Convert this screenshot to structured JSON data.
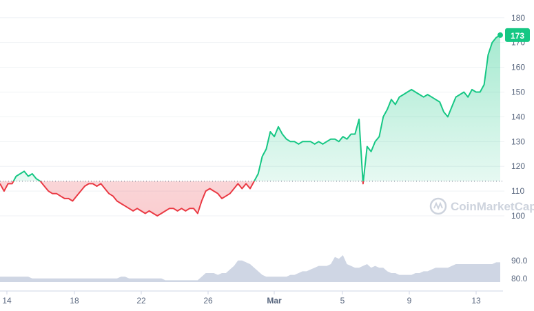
{
  "chart_data": {
    "type": "line",
    "watermark": "CoinMarketCap",
    "price_axis": {
      "ticks": [
        180,
        170,
        160,
        150,
        140,
        130,
        120,
        110,
        100
      ],
      "ylim": [
        95,
        183
      ]
    },
    "volume_axis": {
      "ticks": [
        "90.0",
        "80.0"
      ],
      "ylim": [
        78,
        93
      ]
    },
    "x_ticks": [
      "14",
      "18",
      "22",
      "26",
      "Mar",
      "5",
      "9",
      "13"
    ],
    "baseline": 114,
    "current_price_label": "173",
    "colors": {
      "up": "#16c784",
      "down": "#ea3943",
      "volume": "#cfd6e4",
      "grid": "#eff2f5",
      "axis_text": "#58667e"
    },
    "series": [
      {
        "values": [
          113,
          110,
          113,
          113,
          116,
          117,
          118,
          116,
          117,
          115,
          114,
          112,
          110,
          109,
          109,
          108,
          107,
          107,
          106,
          108,
          110,
          112,
          113,
          113,
          112,
          113,
          111,
          109,
          108,
          106,
          105,
          104,
          103,
          102,
          103,
          102,
          101,
          102,
          101,
          100,
          101,
          102,
          103,
          103,
          102,
          103,
          102,
          103,
          103,
          101,
          106,
          110,
          111,
          110,
          109,
          107,
          108,
          109,
          111,
          113,
          111,
          113,
          111,
          114,
          117,
          124,
          127,
          134,
          132,
          136,
          133,
          131,
          130,
          130,
          129,
          130,
          130,
          130,
          129,
          130,
          129,
          130,
          131,
          131,
          130,
          132,
          131,
          133,
          133,
          139,
          113,
          128,
          126,
          130,
          132,
          140,
          143,
          147,
          145,
          148,
          149,
          150,
          151,
          150,
          149,
          148,
          149,
          148,
          147,
          146,
          142,
          140,
          144,
          148,
          149,
          150,
          148,
          151,
          150,
          150,
          153,
          165,
          170,
          172,
          173
        ],
        "volume": [
          81,
          81,
          81,
          81,
          81,
          81,
          81,
          81,
          80,
          80,
          80,
          80,
          80,
          80,
          80,
          80,
          80,
          80,
          80,
          80,
          80,
          80,
          80,
          80,
          80,
          80,
          80,
          80,
          80,
          80,
          81,
          81,
          80,
          80,
          80,
          80,
          80,
          80,
          80,
          80,
          80,
          79,
          79,
          79,
          79,
          79,
          79,
          79,
          79,
          79,
          81,
          83,
          83,
          83,
          82,
          83,
          83,
          85,
          87,
          90,
          90,
          89,
          88,
          86,
          84,
          82,
          81,
          81,
          81,
          81,
          81,
          81,
          82,
          82,
          83,
          84,
          84,
          85,
          86,
          87,
          87,
          87,
          88,
          92,
          91,
          93,
          88,
          87,
          86,
          86,
          87,
          88,
          86,
          87,
          86,
          86,
          84,
          83,
          83,
          82,
          82,
          82,
          82,
          83,
          83,
          84,
          84,
          85,
          86,
          86,
          86,
          86,
          87,
          88,
          88,
          88,
          88,
          88,
          88,
          88,
          88,
          88,
          88,
          89,
          89
        ]
      }
    ]
  }
}
